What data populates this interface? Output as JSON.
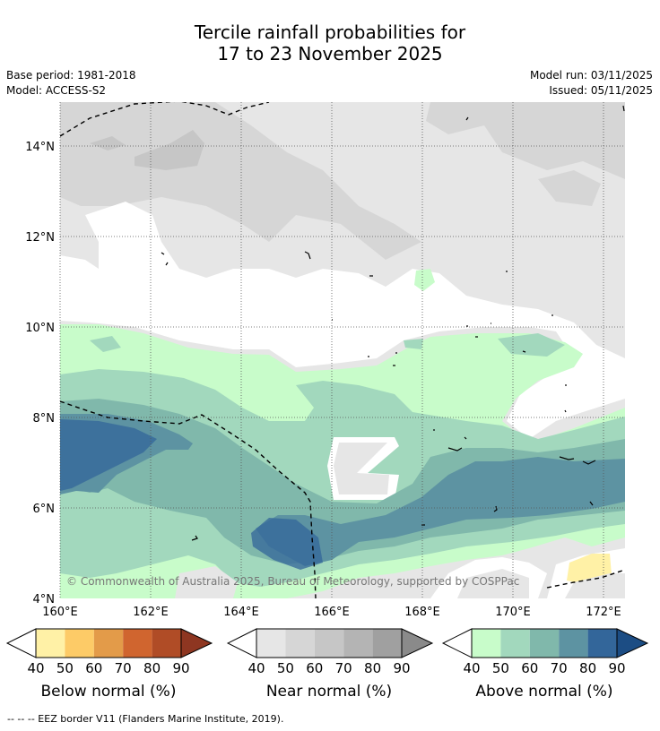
{
  "title": {
    "line1": "Tercile rainfall probabilities for",
    "line2": "17 to 23 November 2025"
  },
  "info": {
    "base_period": "Base period: 1981-2018",
    "model": "Model: ACCESS-S2",
    "model_run": "Model run: 03/11/2025",
    "issued": "Issued: 05/11/2025"
  },
  "map": {
    "lat_labels": [
      "14°N",
      "12°N",
      "10°N",
      "8°N",
      "6°N",
      "4°N"
    ],
    "lon_labels": [
      "160°E",
      "162°E",
      "164°E",
      "166°E",
      "168°E",
      "170°E",
      "172°E"
    ],
    "copyright": "© Commonwealth of Australia 2025, Bureau of Meteorology, supported by COSPPac"
  },
  "colorbars": [
    {
      "name": "below",
      "title": "Below normal (%)",
      "ticks": [
        "40",
        "50",
        "60",
        "70",
        "80",
        "90"
      ],
      "colors": [
        "#fff1a6",
        "#fdcb67",
        "#e39b49",
        "#d0652f",
        "#b04c26",
        "#8e3621"
      ]
    },
    {
      "name": "near",
      "title": "Near normal (%)",
      "ticks": [
        "40",
        "50",
        "60",
        "70",
        "80",
        "90"
      ],
      "colors": [
        "#e6e6e6",
        "#d6d6d6",
        "#c6c6c6",
        "#b4b4b4",
        "#a0a0a0",
        "#8a8a8a"
      ]
    },
    {
      "name": "above",
      "title": "Above normal (%)",
      "ticks": [
        "40",
        "50",
        "60",
        "70",
        "80",
        "90"
      ],
      "colors": [
        "#c8fcca",
        "#a2d8bd",
        "#80b8ab",
        "#5d93a2",
        "#33669a",
        "#1c4d84"
      ]
    }
  ],
  "footnote": "--  --  -- EEZ border V11 (Flanders Marine Institute, 2019)."
}
